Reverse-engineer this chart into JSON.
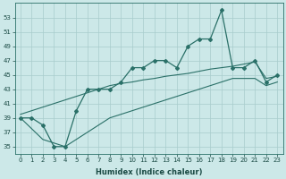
{
  "xlabel": "Humidex (Indice chaleur)",
  "x": [
    0,
    1,
    2,
    3,
    4,
    5,
    6,
    7,
    8,
    9,
    10,
    11,
    12,
    13,
    14,
    15,
    16,
    17,
    18,
    19,
    20,
    21,
    22,
    23
  ],
  "main_line": [
    39,
    39,
    38,
    35,
    35,
    40,
    43,
    43,
    43,
    44,
    46,
    46,
    47,
    47,
    46,
    49,
    50,
    50,
    54,
    46,
    46,
    47,
    44,
    45
  ],
  "upper_trend": [
    39.5,
    40.0,
    40.5,
    41.0,
    41.5,
    42.0,
    42.5,
    43.0,
    43.5,
    43.8,
    44.0,
    44.3,
    44.5,
    44.8,
    45.0,
    45.2,
    45.5,
    45.8,
    46.0,
    46.2,
    46.5,
    46.8,
    44.5,
    44.8
  ],
  "lower_trend": [
    39,
    37.5,
    36,
    35.5,
    35,
    36,
    37,
    38,
    39,
    39.5,
    40,
    40.5,
    41,
    41.5,
    42,
    42.5,
    43,
    43.5,
    44,
    44.5,
    44.5,
    44.5,
    43.5,
    44
  ],
  "bg_color": "#cce8e8",
  "grid_color": "#a8cccc",
  "line_color": "#2a7068",
  "ylim": [
    34,
    55
  ],
  "yticks": [
    35,
    37,
    39,
    41,
    43,
    45,
    47,
    49,
    51,
    53
  ],
  "xlim": [
    -0.5,
    23.5
  ],
  "tick_fontsize": 5,
  "xlabel_fontsize": 6
}
